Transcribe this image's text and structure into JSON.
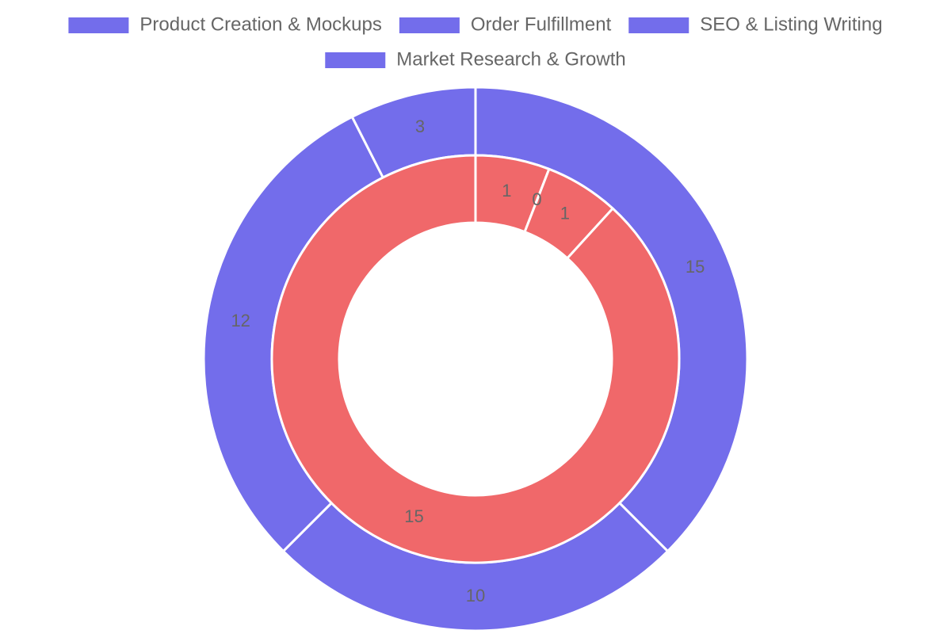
{
  "chart_data": {
    "type": "doughnut",
    "categories": [
      "Product Creation & Mockups",
      "Order Fulfillment",
      "SEO & Listing Writing",
      "Market Research & Growth"
    ],
    "series": [
      {
        "color": "#736deb",
        "values": [
          15,
          10,
          12,
          3
        ]
      },
      {
        "color": "#f0686a",
        "values": [
          1,
          0,
          1,
          15
        ]
      }
    ],
    "legend": "top"
  }
}
